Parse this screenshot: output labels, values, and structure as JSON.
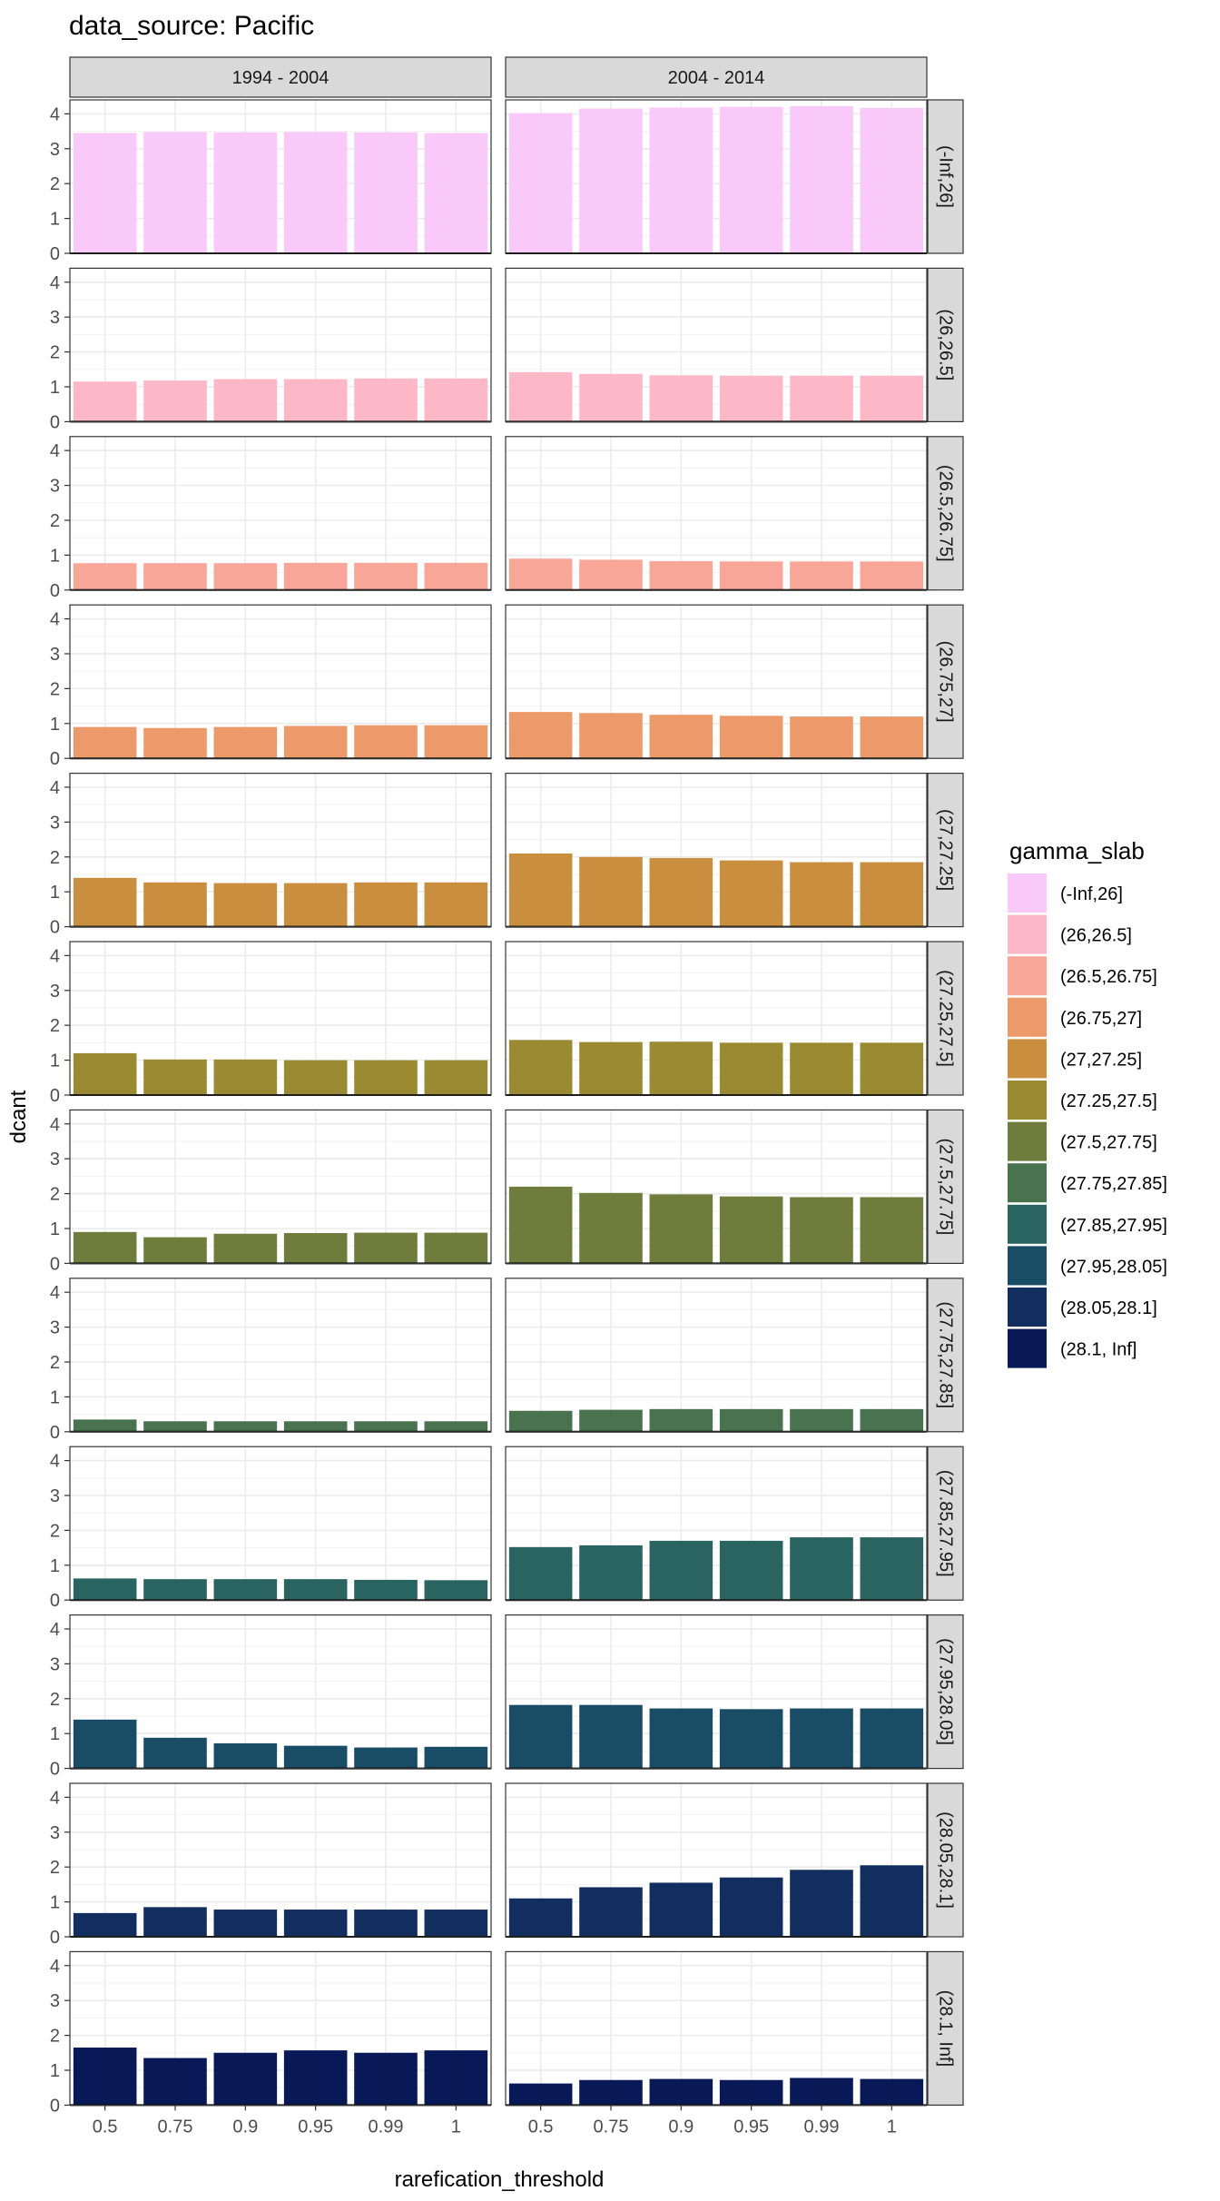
{
  "chart_data": {
    "type": "bar",
    "title": "data_source: Pacific",
    "xlabel": "rarefication_threshold",
    "ylabel": "dcant",
    "categories": [
      "0.5",
      "0.75",
      "0.9",
      "0.95",
      "0.99",
      "1"
    ],
    "ylim": [
      0,
      4.4
    ],
    "yticks": [
      "0",
      "1",
      "2",
      "3",
      "4"
    ],
    "grid": true,
    "facet_columns": [
      "1994 - 2004",
      "2004 - 2014"
    ],
    "legend": {
      "title": "gamma_slab",
      "placement": "right"
    },
    "facet_rows": [
      {
        "label": "(-Inf,26]",
        "color": "#F9CAF9",
        "series": [
          {
            "period": "1994 - 2004",
            "values": [
              3.45,
              3.48,
              3.47,
              3.48,
              3.47,
              3.45
            ]
          },
          {
            "period": "2004 - 2014",
            "values": [
              4.02,
              4.15,
              4.18,
              4.2,
              4.22,
              4.17
            ]
          }
        ]
      },
      {
        "label": "(26,26.5]",
        "color": "#FCB8C7",
        "series": [
          {
            "period": "1994 - 2004",
            "values": [
              1.15,
              1.18,
              1.22,
              1.22,
              1.24,
              1.24
            ]
          },
          {
            "period": "2004 - 2014",
            "values": [
              1.42,
              1.37,
              1.33,
              1.32,
              1.32,
              1.32
            ]
          }
        ]
      },
      {
        "label": "(26.5,26.75]",
        "color": "#F8A698",
        "series": [
          {
            "period": "1994 - 2004",
            "values": [
              0.77,
              0.77,
              0.77,
              0.78,
              0.78,
              0.78
            ]
          },
          {
            "period": "2004 - 2014",
            "values": [
              0.9,
              0.87,
              0.83,
              0.82,
              0.82,
              0.82
            ]
          }
        ]
      },
      {
        "label": "(26.75,27]",
        "color": "#EC9A69",
        "series": [
          {
            "period": "1994 - 2004",
            "values": [
              0.9,
              0.87,
              0.9,
              0.93,
              0.95,
              0.95
            ]
          },
          {
            "period": "2004 - 2014",
            "values": [
              1.33,
              1.3,
              1.25,
              1.22,
              1.2,
              1.2
            ]
          }
        ]
      },
      {
        "label": "(27,27.25]",
        "color": "#C98F3E",
        "series": [
          {
            "period": "1994 - 2004",
            "values": [
              1.4,
              1.27,
              1.25,
              1.25,
              1.27,
              1.27
            ]
          },
          {
            "period": "2004 - 2014",
            "values": [
              2.1,
              2.0,
              1.97,
              1.9,
              1.85,
              1.85
            ]
          }
        ]
      },
      {
        "label": "(27.25,27.5]",
        "color": "#9A8A32",
        "series": [
          {
            "period": "1994 - 2004",
            "values": [
              1.2,
              1.02,
              1.02,
              1.0,
              1.0,
              1.0
            ]
          },
          {
            "period": "2004 - 2014",
            "values": [
              1.58,
              1.52,
              1.53,
              1.5,
              1.5,
              1.5
            ]
          }
        ]
      },
      {
        "label": "(27.5,27.75]",
        "color": "#6F7C3B",
        "series": [
          {
            "period": "1994 - 2004",
            "values": [
              0.9,
              0.75,
              0.85,
              0.87,
              0.88,
              0.88
            ]
          },
          {
            "period": "2004 - 2014",
            "values": [
              2.2,
              2.02,
              1.98,
              1.92,
              1.9,
              1.9
            ]
          }
        ]
      },
      {
        "label": "(27.75,27.85]",
        "color": "#49724F",
        "series": [
          {
            "period": "1994 - 2004",
            "values": [
              0.35,
              0.3,
              0.3,
              0.3,
              0.3,
              0.3
            ]
          },
          {
            "period": "2004 - 2014",
            "values": [
              0.6,
              0.63,
              0.65,
              0.65,
              0.65,
              0.65
            ]
          }
        ]
      },
      {
        "label": "(27.85,27.95]",
        "color": "#2A6461",
        "series": [
          {
            "period": "1994 - 2004",
            "values": [
              0.62,
              0.6,
              0.6,
              0.6,
              0.58,
              0.57
            ]
          },
          {
            "period": "2004 - 2014",
            "values": [
              1.52,
              1.57,
              1.7,
              1.7,
              1.8,
              1.8
            ]
          }
        ]
      },
      {
        "label": "(27.95,28.05]",
        "color": "#194D65",
        "series": [
          {
            "period": "1994 - 2004",
            "values": [
              1.4,
              0.88,
              0.72,
              0.65,
              0.6,
              0.62
            ]
          },
          {
            "period": "2004 - 2014",
            "values": [
              1.82,
              1.82,
              1.72,
              1.7,
              1.72,
              1.72
            ]
          }
        ]
      },
      {
        "label": "(28.05,28.1]",
        "color": "#122E5E",
        "series": [
          {
            "period": "1994 - 2004",
            "values": [
              0.68,
              0.85,
              0.78,
              0.78,
              0.78,
              0.78
            ]
          },
          {
            "period": "2004 - 2014",
            "values": [
              1.1,
              1.42,
              1.55,
              1.7,
              1.92,
              2.05
            ]
          }
        ]
      },
      {
        "label": "(28.1, Inf]",
        "color": "#091957",
        "series": [
          {
            "period": "1994 - 2004",
            "values": [
              1.65,
              1.35,
              1.5,
              1.57,
              1.5,
              1.57
            ]
          },
          {
            "period": "2004 - 2014",
            "values": [
              0.62,
              0.72,
              0.75,
              0.72,
              0.78,
              0.75
            ]
          }
        ]
      }
    ]
  }
}
